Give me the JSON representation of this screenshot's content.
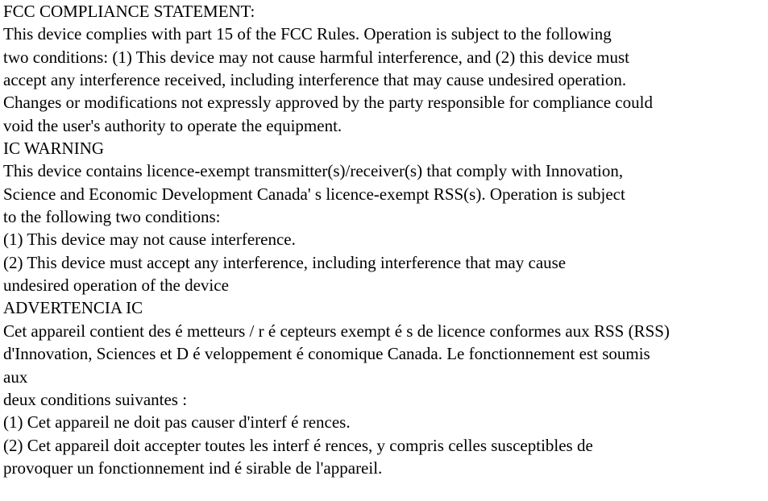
{
  "type": "document",
  "font_family": "Times New Roman",
  "font_size_pt": 16,
  "line_height": 1.35,
  "text_color": "#000000",
  "background_color": "#ffffff",
  "lines": [
    "FCC COMPLIANCE STATEMENT:",
    "This device complies with part 15 of the FCC Rules. Operation is subject to the following",
    "two conditions: (1) This device may not cause harmful interference, and (2) this device must",
    "accept any interference received, including interference that may cause undesired operation.",
    "Changes or modifications not expressly approved by the party responsible for compliance could",
    "void the user's authority to operate the equipment.",
    "IC WARNING",
    "This device contains licence-exempt transmitter(s)/receiver(s) that comply with Innovation,",
    "Science and Economic Development Canada' s licence-exempt RSS(s). Operation is subject",
    "to the following two conditions:",
    "(1) This device may not cause interference.",
    "(2) This device must accept any interference, including interference that may cause",
    "undesired operation of the device",
    "ADVERTENCIA IC",
    "Cet appareil contient des é metteurs / r é cepteurs exempt é s de licence conformes aux RSS (RSS)",
    "d'Innovation, Sciences et D é veloppement é conomique Canada. Le fonctionnement est soumis",
    "aux",
    "deux conditions suivantes :",
    "(1) Cet appareil ne doit pas causer d'interf é rences.",
    "(2) Cet appareil doit accepter toutes les interf é rences, y compris celles susceptibles de",
    "provoquer un fonctionnement ind é sirable de l'appareil."
  ]
}
